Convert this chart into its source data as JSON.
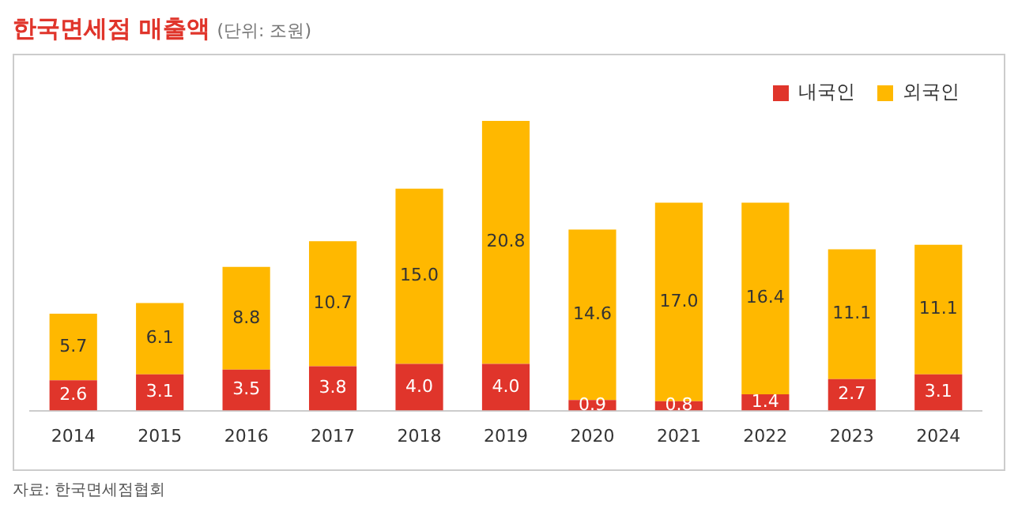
{
  "chart_data": {
    "type": "bar",
    "title": "한국면세점 매출액",
    "subtitle": "(단위: 조원)",
    "annotations": [
      "자료: 한국면세점협회"
    ],
    "categories": [
      "2014",
      "2015",
      "2016",
      "2017",
      "2018",
      "2019",
      "2020",
      "2021",
      "2022",
      "2023",
      "2024"
    ],
    "series": [
      {
        "name": "내국인",
        "color": "#e0352b",
        "values": [
          2.6,
          3.1,
          3.5,
          3.8,
          4.0,
          4.0,
          0.9,
          0.8,
          1.4,
          2.7,
          3.1
        ],
        "value_labels": [
          "2.6",
          "3.1",
          "3.5",
          "3.8",
          "4.0",
          "4.0",
          "0.9",
          "0.8",
          "1.4",
          "2.7",
          "3.1"
        ]
      },
      {
        "name": "외국인",
        "color": "#ffb800",
        "values": [
          5.7,
          6.1,
          8.8,
          10.7,
          15.0,
          20.8,
          14.6,
          17.0,
          16.4,
          11.1,
          11.1
        ],
        "value_labels": [
          "5.7",
          "6.1",
          "8.8",
          "10.7",
          "15.0",
          "20.8",
          "14.6",
          "17.0",
          "16.4",
          "11.1",
          "11.1"
        ]
      }
    ],
    "stacked": true,
    "legend": "top right",
    "tick_labels": "x"
  }
}
